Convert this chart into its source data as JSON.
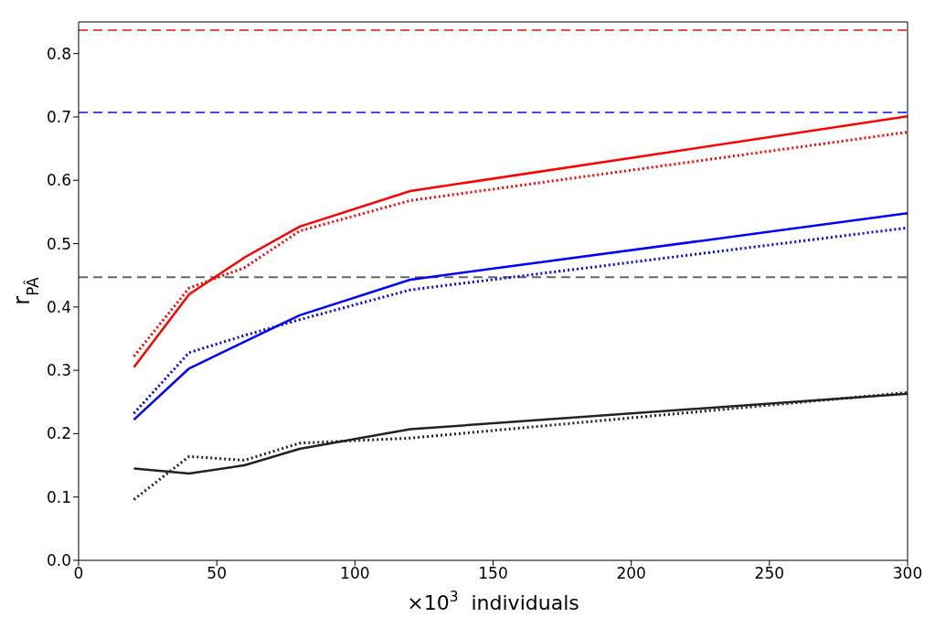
{
  "chart_data": {
    "type": "line",
    "xlabel": "×10$^{3}$  individuals",
    "ylabel": "r$_{PÂ}$",
    "x": [
      20,
      40,
      60,
      80,
      120,
      300
    ],
    "series": [
      {
        "color": "#ff0000",
        "line_style": "solid",
        "values": [
          0.305,
          0.42,
          0.478,
          0.527,
          0.583,
          0.701
        ]
      },
      {
        "color": "#ff0000",
        "line_style": "dotted",
        "values": [
          0.322,
          0.43,
          0.462,
          0.52,
          0.568,
          0.676
        ]
      },
      {
        "color": "#0000ff",
        "line_style": "solid",
        "values": [
          0.222,
          0.303,
          0.345,
          0.387,
          0.443,
          0.548
        ]
      },
      {
        "color": "#0000ff",
        "line_style": "dotted",
        "values": [
          0.232,
          0.328,
          0.355,
          0.38,
          0.427,
          0.525
        ]
      },
      {
        "color": "#222222",
        "line_style": "solid",
        "values": [
          0.145,
          0.137,
          0.15,
          0.176,
          0.207,
          0.263
        ]
      },
      {
        "color": "#222222",
        "line_style": "dotted",
        "values": [
          0.096,
          0.164,
          0.158,
          0.185,
          0.193,
          0.265
        ]
      }
    ],
    "ref_lines": [
      {
        "axis": "y",
        "value": 0.837,
        "color": "#f04848",
        "line_style": "dashed"
      },
      {
        "axis": "y",
        "value": 0.707,
        "color": "#4848f0",
        "line_style": "dashed"
      },
      {
        "axis": "y",
        "value": 0.447,
        "color": "#666666",
        "line_style": "dashed"
      }
    ],
    "xlim": [
      0,
      300
    ],
    "xticks": [
      0,
      50,
      100,
      150,
      200,
      250,
      300
    ],
    "ylim": [
      0,
      0.85
    ],
    "yticks": [
      {
        "value": 0,
        "label": "0.0"
      },
      {
        "value": 0.1,
        "label": "0.1"
      },
      {
        "value": 0.2,
        "label": "0.2"
      },
      {
        "value": 0.3,
        "label": "0.3"
      },
      {
        "value": 0.4,
        "label": "0.4"
      },
      {
        "value": 0.5,
        "label": "0.5"
      },
      {
        "value": 0.6,
        "label": "0.6"
      },
      {
        "value": 0.7,
        "label": "0.7"
      },
      {
        "value": 0.8,
        "label": "0.8"
      }
    ],
    "grid": false,
    "marker": "none"
  }
}
